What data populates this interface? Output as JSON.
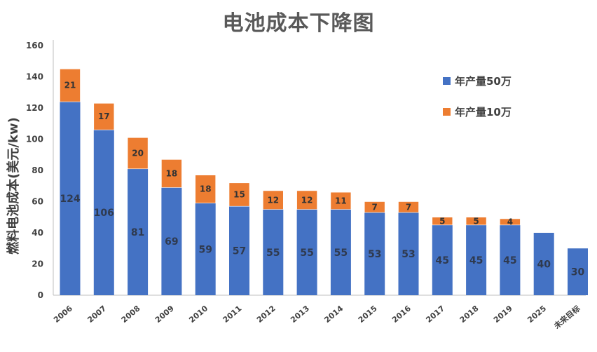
{
  "chart_data": {
    "type": "bar",
    "stacked": true,
    "title": "电池成本下降图",
    "ylabel": "燃料电池成本(美元/kw)",
    "xlabel": "",
    "ylim": [
      0,
      160
    ],
    "yticks": [
      "0",
      "20",
      "40",
      "60",
      "80",
      "100",
      "120",
      "140",
      "160"
    ],
    "categories": [
      "2006",
      "2007",
      "2008",
      "2009",
      "2010",
      "2011",
      "2012",
      "2013",
      "2014",
      "2015",
      "2016",
      "2017",
      "2018",
      "2019",
      "2025",
      "未来目标"
    ],
    "series": [
      {
        "name": "年产量50万",
        "color": "#4472c4",
        "values": [
          124,
          106,
          81,
          69,
          59,
          57,
          55,
          55,
          55,
          53,
          53,
          45,
          45,
          45,
          40,
          30
        ]
      },
      {
        "name": "年产量10万",
        "color": "#ed7d31",
        "values": [
          21,
          17,
          20,
          18,
          18,
          15,
          12,
          12,
          11,
          7,
          7,
          5,
          5,
          4,
          null,
          null
        ]
      }
    ],
    "grid": false,
    "legend_position": "top-right"
  }
}
